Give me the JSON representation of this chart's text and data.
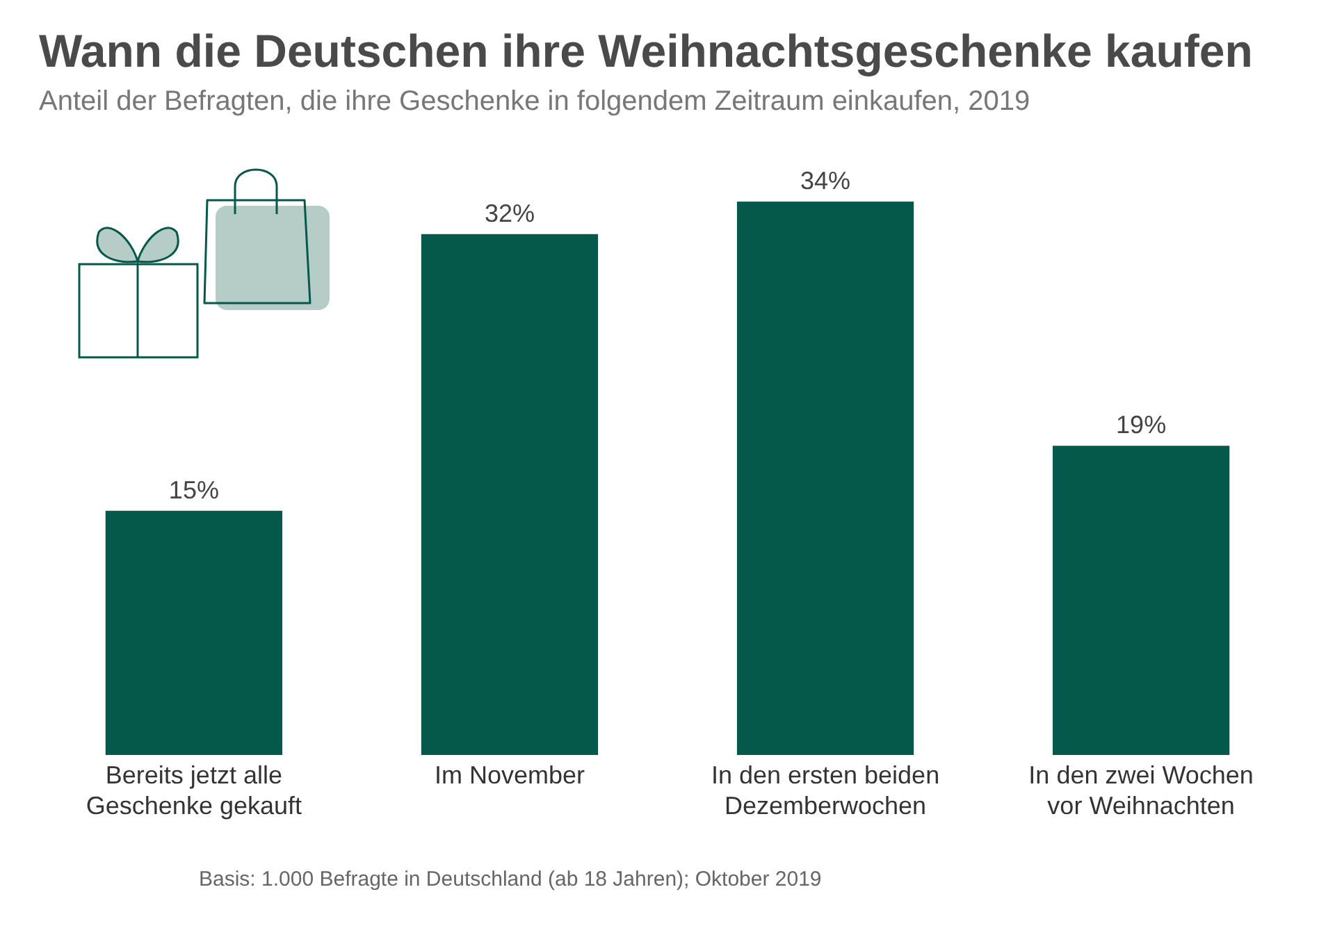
{
  "chart_data": {
    "type": "bar",
    "title": "Wann die Deutschen ihre Weihnachtsgeschenke kaufen",
    "subtitle": "Anteil der Befragten, die ihre Geschenke in folgendem Zeitraum einkaufen, 2019",
    "categories": [
      "Bereits jetzt alle Geschenke gekauft",
      "Im November",
      "In den ersten beiden Dezemberwochen",
      "In den zwei Wochen vor Weihnachten"
    ],
    "values": [
      15,
      32,
      34,
      19
    ],
    "color": "#05594a",
    "data_labels": true,
    "value_labels": [
      "15%",
      "32%",
      "34%",
      "19%"
    ],
    "annotations": [
      "Basis: 1.000 Befragte in Deutschland (ab 18 Jahren); Oktober 2019"
    ]
  }
}
